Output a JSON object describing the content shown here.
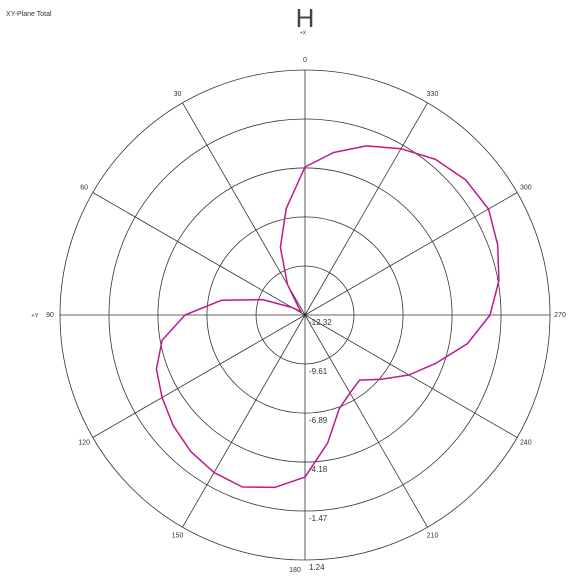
{
  "chart_data": {
    "type": "polar",
    "title": "H",
    "subtitle": "XY-Plane Total",
    "x_axis_label": "+X",
    "y_axis_label": "+Y",
    "direction": "counterclockwise",
    "zero_location": "top",
    "rlim": [
      -12.32,
      1.24
    ],
    "rticks": [
      -12.32,
      -9.61,
      -6.89,
      -4.18,
      -1.47,
      1.24
    ],
    "thetaticks": [
      0,
      30,
      60,
      90,
      120,
      150,
      180,
      210,
      240,
      270,
      300,
      330
    ],
    "grid": true,
    "series": [
      {
        "color": "#c0188c",
        "theta": [
          0,
          10,
          20,
          30,
          40,
          50,
          60,
          70,
          80,
          90,
          100,
          110,
          120,
          130,
          140,
          150,
          160,
          170,
          180,
          190,
          200,
          210,
          220,
          230,
          240,
          250,
          260,
          270,
          280,
          290,
          300,
          310,
          320,
          330,
          340,
          350
        ],
        "values": [
          -4.13,
          -6.34,
          -8.34,
          -10.38,
          -11.77,
          -12.04,
          -11.49,
          -9.83,
          -7.62,
          -5.68,
          -4.29,
          -3.57,
          -3.19,
          -2.8,
          -2.47,
          -2.25,
          -2.19,
          -2.63,
          -3.35,
          -5.12,
          -6.79,
          -7.34,
          -7.62,
          -6.79,
          -5.68,
          -4.57,
          -3.19,
          -2.08,
          -1.42,
          -0.97,
          -0.59,
          -0.7,
          -1.08,
          -1.69,
          -2.36,
          -3.19
        ]
      }
    ]
  }
}
